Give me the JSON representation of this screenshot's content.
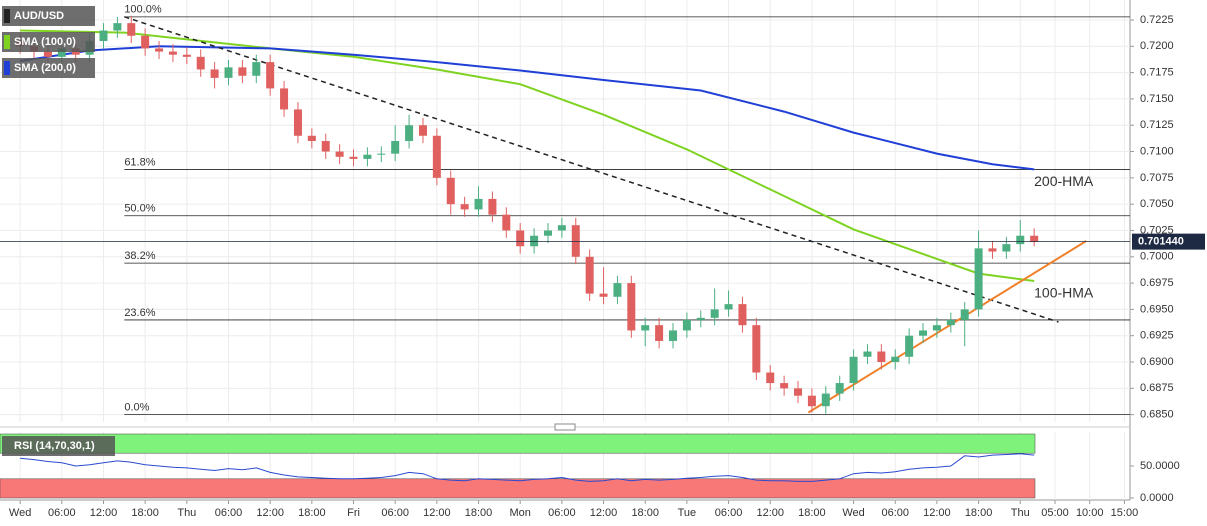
{
  "chart_data": [
    {
      "type": "candlestick",
      "symbol": "AUD/USD",
      "x": [
        0,
        2,
        4,
        6,
        8,
        10,
        12,
        14,
        16,
        18,
        20,
        22,
        24,
        26,
        28,
        30,
        32,
        34,
        36,
        38,
        40,
        42,
        44,
        46,
        48,
        50,
        52,
        54,
        56,
        58,
        60,
        62,
        64,
        66,
        68,
        70,
        72,
        74,
        76,
        78,
        80,
        82,
        84,
        86,
        88,
        90,
        92,
        94,
        96,
        98,
        100,
        102,
        104,
        106,
        108,
        110,
        112,
        114,
        116,
        118,
        120,
        122,
        124,
        126,
        128,
        130,
        132,
        134,
        136,
        138,
        140,
        142,
        144,
        146
      ],
      "open": [
        0.7205,
        0.72,
        0.7195,
        0.719,
        0.7198,
        0.7192,
        0.7205,
        0.7215,
        0.7222,
        0.721,
        0.7198,
        0.7195,
        0.7192,
        0.719,
        0.7178,
        0.717,
        0.718,
        0.7172,
        0.7185,
        0.716,
        0.714,
        0.7115,
        0.711,
        0.71,
        0.7095,
        0.7093,
        0.7097,
        0.7098,
        0.711,
        0.7125,
        0.7115,
        0.7075,
        0.705,
        0.7045,
        0.7055,
        0.704,
        0.7025,
        0.701,
        0.702,
        0.7025,
        0.703,
        0.7,
        0.6965,
        0.6962,
        0.6975,
        0.693,
        0.6935,
        0.692,
        0.693,
        0.694,
        0.6942,
        0.695,
        0.6955,
        0.6935,
        0.689,
        0.688,
        0.6875,
        0.6868,
        0.6858,
        0.687,
        0.688,
        0.6905,
        0.691,
        0.69,
        0.6905,
        0.6925,
        0.693,
        0.6935,
        0.694,
        0.695,
        0.7008,
        0.7005,
        0.7012,
        0.702
      ],
      "high": [
        0.7212,
        0.7207,
        0.7202,
        0.7205,
        0.7205,
        0.7212,
        0.7222,
        0.7228,
        0.7229,
        0.7217,
        0.7205,
        0.7202,
        0.7199,
        0.7197,
        0.7185,
        0.7187,
        0.7187,
        0.7192,
        0.7192,
        0.7167,
        0.7147,
        0.7122,
        0.7117,
        0.7107,
        0.7102,
        0.7104,
        0.7105,
        0.7125,
        0.7135,
        0.7132,
        0.7122,
        0.7082,
        0.7057,
        0.7067,
        0.7062,
        0.7047,
        0.7032,
        0.7027,
        0.7032,
        0.7037,
        0.7037,
        0.7007,
        0.699,
        0.6982,
        0.6982,
        0.6942,
        0.6942,
        0.6937,
        0.6947,
        0.6949,
        0.697,
        0.6968,
        0.6962,
        0.6942,
        0.6897,
        0.6887,
        0.6882,
        0.6875,
        0.6877,
        0.6887,
        0.6912,
        0.6917,
        0.6917,
        0.6912,
        0.6932,
        0.6937,
        0.6942,
        0.6947,
        0.6957,
        0.7025,
        0.7015,
        0.7019,
        0.7035,
        0.7027
      ],
      "low": [
        0.7193,
        0.7188,
        0.7183,
        0.7183,
        0.7185,
        0.7185,
        0.7198,
        0.7208,
        0.7203,
        0.7191,
        0.7188,
        0.7185,
        0.7183,
        0.7171,
        0.716,
        0.7163,
        0.7165,
        0.7165,
        0.7153,
        0.7133,
        0.7108,
        0.7103,
        0.7093,
        0.7088,
        0.7086,
        0.7086,
        0.709,
        0.7091,
        0.7103,
        0.7108,
        0.7068,
        0.704,
        0.7038,
        0.7038,
        0.7033,
        0.7018,
        0.7003,
        0.7003,
        0.7013,
        0.7018,
        0.6993,
        0.6958,
        0.6955,
        0.6955,
        0.6923,
        0.6915,
        0.6913,
        0.6913,
        0.6923,
        0.6933,
        0.6935,
        0.6943,
        0.6928,
        0.6883,
        0.6873,
        0.6868,
        0.6861,
        0.6852,
        0.6851,
        0.6863,
        0.6873,
        0.6898,
        0.6893,
        0.6893,
        0.6898,
        0.6918,
        0.6923,
        0.6928,
        0.6915,
        0.6943,
        0.6998,
        0.6998,
        0.7005,
        0.701
      ],
      "close": [
        0.72,
        0.7195,
        0.719,
        0.7198,
        0.7192,
        0.7205,
        0.7215,
        0.7222,
        0.721,
        0.7198,
        0.7195,
        0.7192,
        0.719,
        0.7178,
        0.717,
        0.718,
        0.7172,
        0.7185,
        0.716,
        0.714,
        0.7115,
        0.711,
        0.71,
        0.7095,
        0.7093,
        0.7097,
        0.7098,
        0.711,
        0.7125,
        0.7115,
        0.7075,
        0.705,
        0.7045,
        0.7055,
        0.704,
        0.7025,
        0.701,
        0.702,
        0.7025,
        0.703,
        0.7,
        0.6965,
        0.6962,
        0.6975,
        0.693,
        0.6935,
        0.692,
        0.693,
        0.694,
        0.6942,
        0.695,
        0.6955,
        0.6935,
        0.689,
        0.688,
        0.6875,
        0.6868,
        0.6858,
        0.687,
        0.688,
        0.6905,
        0.691,
        0.69,
        0.6905,
        0.6925,
        0.693,
        0.6935,
        0.694,
        0.695,
        0.7008,
        0.7005,
        0.7012,
        0.702,
        0.7014
      ],
      "up_color": "#4caf82",
      "down_color": "#e06060",
      "series": [
        {
          "name": "SMA (100,0)",
          "color": "#7ed321",
          "label": "100-HMA",
          "label_color": "#6cc51a",
          "x": [
            0,
            15,
            36,
            48,
            60,
            72,
            84,
            96,
            108,
            120,
            132,
            138,
            146
          ],
          "values": [
            0.7215,
            0.7213,
            0.7198,
            0.719,
            0.7178,
            0.7164,
            0.7135,
            0.7102,
            0.7064,
            0.7026,
            0.6998,
            0.6984,
            0.6977
          ]
        },
        {
          "name": "SMA (200,0)",
          "color": "#1f3fd6",
          "label": "200-HMA",
          "label_color": "#8a4fc9",
          "x": [
            0,
            10,
            20,
            36,
            48,
            60,
            72,
            84,
            98,
            110,
            120,
            132,
            140,
            146
          ],
          "values": [
            0.7186,
            0.7196,
            0.72,
            0.7198,
            0.7192,
            0.7185,
            0.7177,
            0.7168,
            0.7158,
            0.7138,
            0.7118,
            0.7098,
            0.7088,
            0.7083
          ]
        }
      ],
      "trendlines": [
        {
          "color": "#222222",
          "dashed": true,
          "x": [
            15,
            149.5
          ],
          "values": [
            0.7228,
            0.6938
          ]
        },
        {
          "color": "#f0802a",
          "dashed": false,
          "x": [
            113.5,
            153.5
          ],
          "values": [
            0.6852,
            0.7015
          ]
        }
      ],
      "fibonacci": {
        "x": 15,
        "levels": [
          {
            "label": "100.0%",
            "value": 0.7228
          },
          {
            "label": "61.8%",
            "value": 0.7083
          },
          {
            "label": "50.0%",
            "value": 0.7039
          },
          {
            "label": "38.2%",
            "value": 0.6994
          },
          {
            "label": "23.6%",
            "value": 0.694
          },
          {
            "label": "0.0%",
            "value": 0.685
          }
        ]
      },
      "last_price": {
        "value": 0.70144,
        "label": "0.701440"
      },
      "ylim": [
        0.6843,
        0.7244
      ],
      "yticks": [
        {
          "value": 0.685,
          "label": "0.6850"
        },
        0.6875,
        {
          "value": 0.69,
          "label": "0.6900"
        },
        0.6925,
        {
          "value": 0.695,
          "label": "0.6950"
        },
        0.6975,
        {
          "value": 0.7,
          "label": "0.7000"
        },
        0.7025,
        {
          "value": 0.705,
          "label": "0.7050"
        },
        0.7075,
        {
          "value": 0.71,
          "label": "0.7100"
        },
        0.7125,
        {
          "value": 0.715,
          "label": "0.7150"
        },
        0.7175,
        {
          "value": 0.72,
          "label": "0.7200"
        },
        0.7225
      ],
      "xlim": [
        -2.9,
        159.8
      ],
      "xticks": [
        {
          "value": 0,
          "label": "Wed"
        },
        {
          "value": 6,
          "label": "06:00"
        },
        {
          "value": 12,
          "label": "12:00"
        },
        {
          "value": 18,
          "label": "18:00"
        },
        {
          "value": 24,
          "label": "Thu"
        },
        {
          "value": 30,
          "label": "06:00"
        },
        {
          "value": 36,
          "label": "12:00"
        },
        {
          "value": 42,
          "label": "18:00"
        },
        {
          "value": 48,
          "label": "Fri"
        },
        {
          "value": 54,
          "label": "06:00"
        },
        {
          "value": 60,
          "label": "12:00"
        },
        {
          "value": 66,
          "label": "18:00"
        },
        {
          "value": 72,
          "label": "Mon"
        },
        {
          "value": 78,
          "label": "06:00"
        },
        {
          "value": 84,
          "label": "12:00"
        },
        {
          "value": 90,
          "label": "18:00"
        },
        {
          "value": 96,
          "label": "Tue"
        },
        {
          "value": 102,
          "label": "06:00"
        },
        {
          "value": 108,
          "label": "12:00"
        },
        {
          "value": 114,
          "label": "18:00"
        },
        {
          "value": 120,
          "label": "Wed"
        },
        {
          "value": 126,
          "label": "06:00"
        },
        {
          "value": 132,
          "label": "12:00"
        },
        {
          "value": 138,
          "label": "18:00"
        },
        {
          "value": 144,
          "label": "Thu"
        },
        {
          "value": 149,
          "label": "05:00"
        },
        {
          "value": 154,
          "label": "10:00"
        },
        {
          "value": 159,
          "label": "15:00"
        }
      ],
      "grid": true
    },
    {
      "type": "line",
      "title": "RSI (14,70,30,1)",
      "color": "#2a4ad0",
      "x": [
        0,
        2,
        4,
        6,
        8,
        10,
        12,
        14,
        16,
        18,
        20,
        22,
        24,
        26,
        28,
        30,
        32,
        34,
        36,
        38,
        40,
        42,
        44,
        46,
        48,
        50,
        52,
        54,
        56,
        58,
        60,
        62,
        64,
        66,
        68,
        70,
        72,
        74,
        76,
        78,
        80,
        82,
        84,
        86,
        88,
        90,
        92,
        94,
        96,
        98,
        100,
        102,
        104,
        106,
        108,
        110,
        112,
        114,
        116,
        118,
        120,
        122,
        124,
        126,
        128,
        130,
        132,
        134,
        136,
        138,
        140,
        142,
        144,
        146
      ],
      "values": [
        62,
        60,
        57,
        55,
        50,
        52,
        55,
        58,
        56,
        52,
        50,
        48,
        47,
        45,
        43,
        46,
        44,
        47,
        40,
        36,
        33,
        32,
        31,
        30,
        30,
        31,
        32,
        35,
        40,
        38,
        30,
        28,
        27,
        30,
        29,
        28,
        27,
        29,
        30,
        32,
        28,
        26,
        27,
        30,
        27,
        29,
        28,
        29,
        31,
        32,
        34,
        35,
        32,
        28,
        27,
        27,
        26,
        26,
        28,
        30,
        38,
        40,
        39,
        41,
        45,
        47,
        48,
        50,
        66,
        64,
        67,
        68,
        69,
        67
      ],
      "overbought": 70,
      "oversold": 30,
      "overbought_color": "#7ef27a",
      "oversold_color": "#f87878",
      "ylim": [
        0,
        100
      ],
      "yticks": [
        {
          "value": 50,
          "label": "50.0000"
        },
        {
          "value": 0,
          "label": "0.0000"
        }
      ]
    }
  ]
}
